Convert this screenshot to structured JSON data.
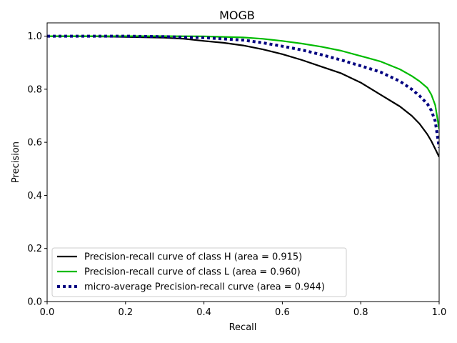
{
  "chart_data": {
    "type": "line",
    "title": "MOGB",
    "xlabel": "Recall",
    "ylabel": "Precision",
    "xlim": [
      0.0,
      1.0
    ],
    "ylim": [
      0.0,
      1.05
    ],
    "xticks": [
      "0.0",
      "0.2",
      "0.4",
      "0.6",
      "0.8",
      "1.0"
    ],
    "yticks": [
      "0.0",
      "0.2",
      "0.4",
      "0.6",
      "0.8",
      "1.0"
    ],
    "grid": false,
    "legend_position": "lower-left",
    "series": [
      {
        "name": "Precision-recall curve of class H (area = 0.915)",
        "color": "#000000",
        "style": "solid",
        "x": [
          0.0,
          0.1,
          0.2,
          0.3,
          0.35,
          0.4,
          0.45,
          0.5,
          0.55,
          0.6,
          0.65,
          0.7,
          0.75,
          0.8,
          0.85,
          0.9,
          0.93,
          0.95,
          0.97,
          0.98,
          0.99,
          1.0
        ],
        "y": [
          1.0,
          1.0,
          0.997,
          0.994,
          0.99,
          0.982,
          0.975,
          0.965,
          0.95,
          0.932,
          0.91,
          0.885,
          0.86,
          0.825,
          0.78,
          0.735,
          0.7,
          0.67,
          0.63,
          0.605,
          0.575,
          0.545
        ]
      },
      {
        "name": "Precision-recall curve of class L (area = 0.960)",
        "color": "#00bb00",
        "style": "solid",
        "x": [
          0.0,
          0.1,
          0.2,
          0.3,
          0.4,
          0.5,
          0.55,
          0.6,
          0.65,
          0.7,
          0.75,
          0.8,
          0.85,
          0.9,
          0.93,
          0.95,
          0.97,
          0.98,
          0.99,
          1.0
        ],
        "y": [
          1.0,
          1.0,
          1.0,
          1.0,
          0.999,
          0.995,
          0.99,
          0.982,
          0.972,
          0.96,
          0.945,
          0.925,
          0.905,
          0.875,
          0.85,
          0.83,
          0.805,
          0.78,
          0.74,
          0.65
        ]
      },
      {
        "name": "micro-average Precision-recall curve (area = 0.944)",
        "color": "#000080",
        "style": "dotted",
        "x": [
          0.0,
          0.1,
          0.2,
          0.3,
          0.4,
          0.5,
          0.55,
          0.6,
          0.65,
          0.7,
          0.75,
          0.8,
          0.85,
          0.9,
          0.93,
          0.95,
          0.97,
          0.98,
          0.99,
          1.0
        ],
        "y": [
          1.0,
          1.0,
          1.0,
          0.998,
          0.994,
          0.985,
          0.975,
          0.962,
          0.948,
          0.93,
          0.91,
          0.888,
          0.865,
          0.83,
          0.8,
          0.775,
          0.745,
          0.72,
          0.68,
          0.58
        ]
      }
    ]
  }
}
